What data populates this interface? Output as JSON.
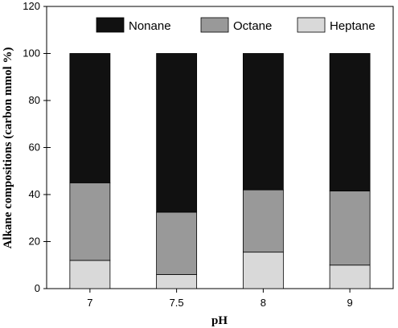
{
  "chart_data": {
    "type": "bar",
    "stacked": true,
    "xlabel": "pH",
    "ylabel": "Alkane compositions (carbon mmol %)",
    "categories": [
      "7",
      "7.5",
      "8",
      "9"
    ],
    "ylim": [
      0,
      120
    ],
    "yticks": [
      0,
      20,
      40,
      60,
      80,
      100,
      120
    ],
    "series": [
      {
        "name": "Heptane",
        "values": [
          12,
          6,
          15.5,
          10
        ],
        "color": "#d9d9d9"
      },
      {
        "name": "Octane",
        "values": [
          33,
          26.5,
          26.5,
          31.5
        ],
        "color": "#999999"
      },
      {
        "name": "Nonane",
        "values": [
          55,
          67.5,
          58,
          58.5
        ],
        "color": "#111111"
      }
    ],
    "legend_order": [
      "Nonane",
      "Octane",
      "Heptane"
    ],
    "legend_position": "top",
    "grid": false
  }
}
